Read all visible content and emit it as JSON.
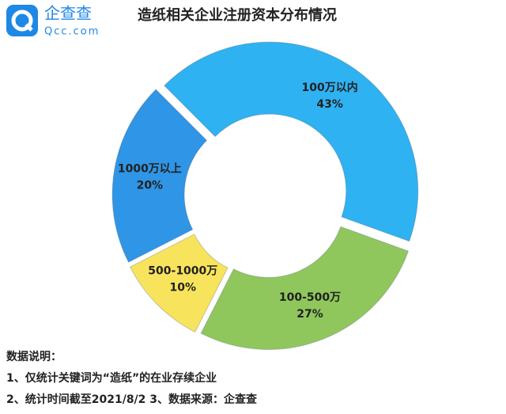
{
  "logo": {
    "name": "企查查",
    "domain": "Qcc.com"
  },
  "chart_data": {
    "type": "donut",
    "title": "造纸相关企业注册资本分布情况",
    "categories": [
      "100万以内",
      "100-500万",
      "500-1000万",
      "1000万以上"
    ],
    "values": [
      43,
      27,
      10,
      20
    ],
    "value_labels": [
      "43%",
      "27%",
      "10%",
      "20%"
    ],
    "colors": [
      "#2eb2f2",
      "#8fc75c",
      "#f8e45c",
      "#2f95e6"
    ]
  },
  "notes": {
    "heading": "数据说明：",
    "lines": [
      "1、仅统计关键词为“造纸”的在业存续企业",
      "2、统计时间截至2021/8/2  3、数据来源：企查查"
    ]
  }
}
